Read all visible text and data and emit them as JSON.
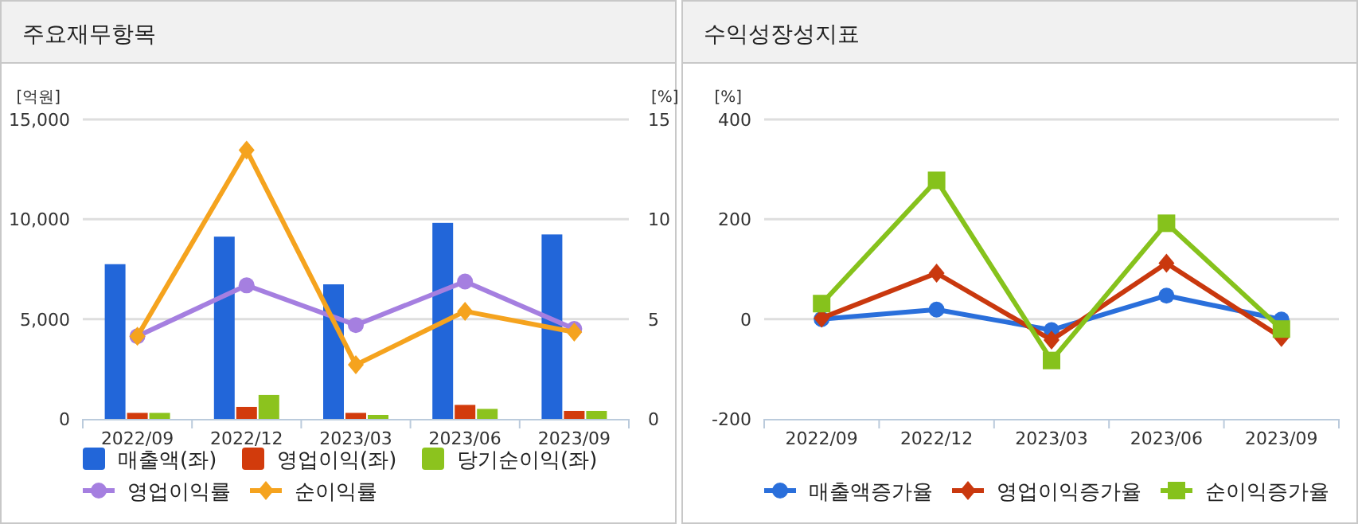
{
  "chart_data": [
    {
      "type": "bar",
      "title": "주요재무항목",
      "ylabel": "[억원]",
      "y2label": "[%]",
      "categories": [
        "2022/09",
        "2022/12",
        "2023/03",
        "2023/06",
        "2023/09"
      ],
      "series": [
        {
          "name": "매출액(좌)",
          "color": "#2266d9",
          "values": [
            7750,
            9130,
            6740,
            9820,
            9240
          ]
        },
        {
          "name": "영업이익(좌)",
          "color": "#d23b0c",
          "values": [
            300,
            600,
            300,
            700,
            400
          ]
        },
        {
          "name": "당기순이익(좌)",
          "color": "#8cc31e",
          "values": [
            300,
            1200,
            200,
            500,
            400
          ]
        },
        {
          "name": "영업이익률",
          "type": "line",
          "axis": "y2",
          "marker": "circle",
          "color": "#a57fe0",
          "values": [
            4.14,
            6.69,
            4.7,
            6.88,
            4.51
          ]
        },
        {
          "name": "순이익률",
          "type": "line",
          "axis": "y2",
          "marker": "diamond",
          "color": "#f5a31e",
          "values": [
            4.14,
            13.46,
            2.71,
            5.39,
            4.35
          ]
        }
      ],
      "ylim": [
        0,
        15000
      ],
      "yticks": [
        0,
        {
          "value": 5000,
          "label": "5,000"
        },
        {
          "value": 10000,
          "label": "10,000"
        },
        {
          "value": 15000,
          "label": "15,000"
        }
      ],
      "y2lim": [
        0,
        15
      ],
      "y2ticks": [
        0,
        5,
        10,
        15
      ],
      "grid": "y",
      "legend": "bottom"
    },
    {
      "type": "line",
      "title": "수익성장성지표",
      "ylabel": "[%]",
      "categories": [
        "2022/09",
        "2022/12",
        "2023/03",
        "2023/06",
        "2023/09"
      ],
      "series": [
        {
          "name": "매출액증가율",
          "marker": "circle",
          "color": "#2a6fdb",
          "values": [
            0,
            19,
            -22,
            47,
            -1
          ]
        },
        {
          "name": "영업이익증가율",
          "marker": "diamond",
          "color": "#c9380e",
          "values": [
            2,
            92,
            -42,
            112,
            -37
          ]
        },
        {
          "name": "순이익증가율",
          "marker": "square",
          "color": "#86c21c",
          "values": [
            31,
            278,
            -83,
            192,
            -20
          ]
        }
      ],
      "ylim": [
        -200,
        400
      ],
      "yticks": [
        -200,
        0,
        200,
        400
      ],
      "grid": "y",
      "legend": "bottom"
    }
  ]
}
